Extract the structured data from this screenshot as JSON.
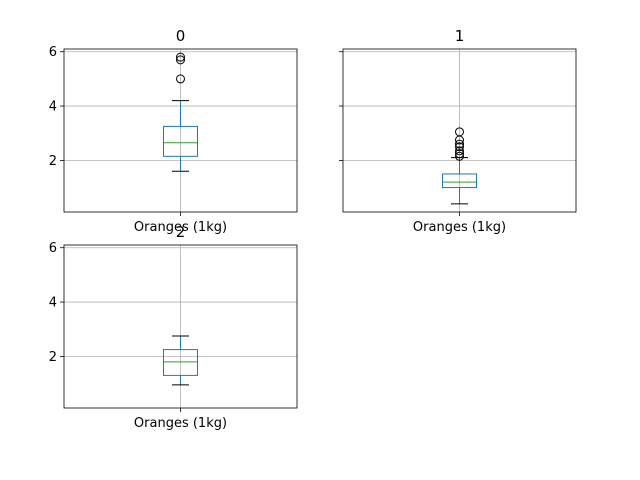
{
  "chart_data": [
    {
      "type": "box",
      "title": "0",
      "categories": [
        "Oranges (1kg)"
      ],
      "ylim": [
        0.1,
        6.1
      ],
      "yticks": [
        2,
        4,
        6
      ],
      "show_ytick_labels": true,
      "grid": true,
      "box": {
        "whislo": 1.6,
        "q1": 2.15,
        "med": 2.65,
        "q3": 3.25,
        "whishi": 4.2
      },
      "outliers": [
        5.0,
        5.7,
        5.8
      ]
    },
    {
      "type": "box",
      "title": "1",
      "categories": [
        "Oranges (1kg)"
      ],
      "ylim": [
        0.1,
        6.1
      ],
      "yticks": [
        2,
        4,
        6
      ],
      "show_ytick_labels": false,
      "grid": true,
      "box": {
        "whislo": 0.4,
        "q1": 1.0,
        "med": 1.2,
        "q3": 1.5,
        "whishi": 2.1
      },
      "outliers": [
        2.15,
        2.25,
        2.35,
        2.5,
        2.6,
        2.75,
        3.05
      ]
    },
    {
      "type": "box",
      "title": "2",
      "categories": [
        "Oranges (1kg)"
      ],
      "ylim": [
        0.1,
        6.1
      ],
      "yticks": [
        2,
        4,
        6
      ],
      "show_ytick_labels": true,
      "grid": true,
      "box": {
        "whislo": 0.95,
        "q1": 1.3,
        "med": 1.8,
        "q3": 2.25,
        "whishi": 2.75
      },
      "outliers": []
    }
  ]
}
